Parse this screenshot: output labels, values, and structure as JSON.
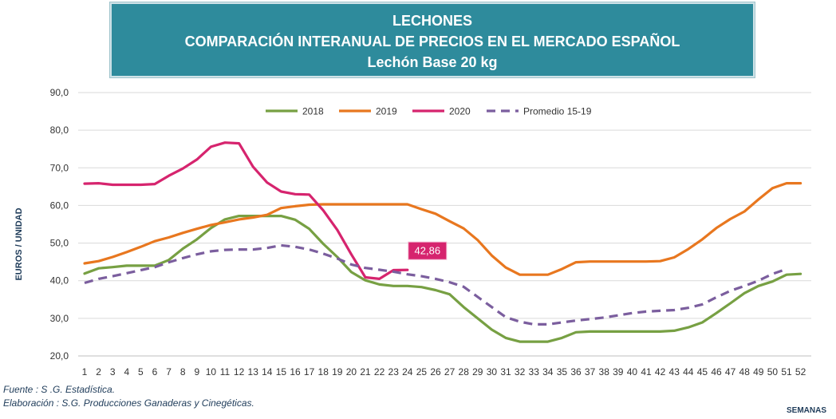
{
  "title": {
    "line1": "LECHONES",
    "line2": "COMPARACIÓN INTERANUAL DE PRECIOS EN EL MERCADO ESPAÑOL",
    "line3": "Lechón Base 20 kg"
  },
  "footer": {
    "source": "Fuente :  S .G. Estadística.",
    "elaboration": "Elaboración : S.G. Producciones Ganaderas y Cinegéticas."
  },
  "chart_data": {
    "type": "line",
    "xlabel": "SEMANAS",
    "ylabel": "EUROS / UNIDAD",
    "ylim": [
      20,
      90
    ],
    "yticks": [
      20,
      30,
      40,
      50,
      60,
      70,
      80,
      90
    ],
    "ytick_labels": [
      "20,0",
      "30,0",
      "40,0",
      "50,0",
      "60,0",
      "70,0",
      "80,0",
      "90,0"
    ],
    "x": [
      1,
      2,
      3,
      4,
      5,
      6,
      7,
      8,
      9,
      10,
      11,
      12,
      13,
      14,
      15,
      16,
      17,
      18,
      19,
      20,
      21,
      22,
      23,
      24,
      25,
      26,
      27,
      28,
      29,
      30,
      31,
      32,
      33,
      34,
      35,
      36,
      37,
      38,
      39,
      40,
      41,
      42,
      43,
      44,
      45,
      46,
      47,
      48,
      49,
      50,
      51,
      52
    ],
    "grid": "horizontal",
    "legend_position": "top",
    "series": [
      {
        "name": "2018",
        "color": "#77A043",
        "dash": "solid",
        "values": [
          41.9,
          43.3,
          43.6,
          44.0,
          44.0,
          44.0,
          45.5,
          48.5,
          51.0,
          54.0,
          56.3,
          57.2,
          57.2,
          57.2,
          57.2,
          56.2,
          53.8,
          49.8,
          46.3,
          42.3,
          40.1,
          39.0,
          38.6,
          38.6,
          38.3,
          37.5,
          36.4,
          33.0,
          30.0,
          27.0,
          24.8,
          23.8,
          23.8,
          23.8,
          24.8,
          26.3,
          26.5,
          26.5,
          26.5,
          26.5,
          26.5,
          26.5,
          26.7,
          27.6,
          28.9,
          31.4,
          34.0,
          36.7,
          38.6,
          39.8,
          41.6,
          41.8
        ]
      },
      {
        "name": "2019",
        "color": "#E8771F",
        "dash": "solid",
        "values": [
          44.6,
          45.2,
          46.3,
          47.6,
          49.0,
          50.5,
          51.5,
          52.7,
          53.8,
          54.8,
          55.5,
          56.3,
          56.8,
          57.5,
          59.3,
          59.8,
          60.2,
          60.3,
          60.3,
          60.3,
          60.3,
          60.3,
          60.3,
          60.3,
          59.0,
          57.8,
          55.8,
          53.9,
          50.8,
          46.7,
          43.5,
          41.6,
          41.6,
          41.6,
          43.1,
          44.9,
          45.1,
          45.1,
          45.1,
          45.1,
          45.1,
          45.2,
          46.2,
          48.4,
          51.0,
          54.0,
          56.4,
          58.4,
          61.6,
          64.6,
          65.9,
          65.9
        ]
      },
      {
        "name": "2020",
        "color": "#D6246E",
        "dash": "solid",
        "values": [
          65.8,
          65.9,
          65.5,
          65.5,
          65.5,
          65.7,
          67.9,
          69.8,
          72.2,
          75.6,
          76.7,
          76.5,
          70.3,
          66.1,
          63.7,
          63.0,
          62.9,
          58.7,
          53.5,
          47.0,
          40.9,
          40.5,
          42.8,
          42.86,
          null,
          null,
          null,
          null,
          null,
          null,
          null,
          null,
          null,
          null,
          null,
          null,
          null,
          null,
          null,
          null,
          null,
          null,
          null,
          null,
          null,
          null,
          null,
          null,
          null,
          null,
          null,
          null
        ]
      },
      {
        "name": "Promedio 15-19",
        "color": "#7B5E9E",
        "dash": "dashed",
        "values": [
          39.4,
          40.5,
          41.2,
          42.0,
          42.8,
          43.6,
          44.9,
          46.0,
          47.0,
          47.8,
          48.2,
          48.3,
          48.3,
          48.7,
          49.4,
          49.0,
          48.3,
          47.2,
          45.9,
          44.3,
          43.4,
          42.9,
          42.4,
          41.7,
          41.2,
          40.5,
          39.6,
          38.4,
          35.7,
          33.0,
          30.3,
          29.1,
          28.4,
          28.4,
          28.9,
          29.4,
          29.8,
          30.2,
          30.8,
          31.4,
          31.8,
          32.0,
          32.2,
          32.8,
          33.7,
          35.6,
          37.3,
          38.6,
          40.0,
          41.8,
          43.1,
          null
        ]
      }
    ],
    "annotations": [
      {
        "text": "42,86",
        "x": 24,
        "y": 42.86,
        "series": "2020",
        "background": "#D6246E",
        "color": "#ffffff"
      }
    ]
  }
}
